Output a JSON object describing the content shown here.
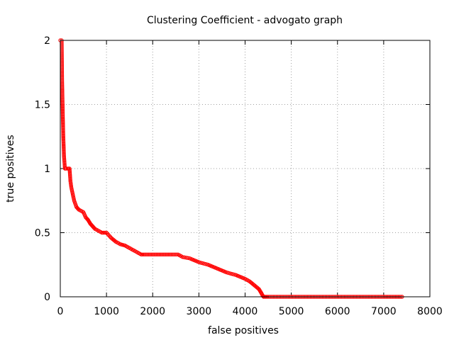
{
  "chart_data": {
    "type": "line",
    "title": "Clustering Coefficient - advogato graph",
    "xlabel": "false positives",
    "ylabel": "true positives",
    "xlim": [
      0,
      8000
    ],
    "ylim": [
      0,
      2
    ],
    "xticks": [
      0,
      1000,
      2000,
      3000,
      4000,
      5000,
      6000,
      7000,
      8000
    ],
    "xtick_labels": [
      "0",
      "1000",
      "2000",
      "3000",
      "4000",
      "5000",
      "6000",
      "7000",
      "8000"
    ],
    "yticks": [
      0,
      0.5,
      1,
      1.5,
      2
    ],
    "ytick_labels": [
      "0",
      "0.5",
      "1",
      "1.5",
      "2"
    ],
    "grid": true,
    "marker": "circle",
    "color": "#ff0000",
    "series": [
      {
        "x": [
          0,
          30,
          40,
          50,
          55,
          60,
          65,
          70,
          75,
          80,
          90,
          100,
          110,
          130,
          160,
          180,
          200,
          210,
          220,
          240,
          270,
          300,
          350,
          400,
          450,
          500,
          550,
          600,
          650,
          700,
          750,
          800,
          900,
          1000,
          1100,
          1200,
          1300,
          1400,
          1500,
          1600,
          1700,
          1750,
          1800,
          2000,
          2200,
          2400,
          2550,
          2650,
          2800,
          3000,
          3200,
          3400,
          3600,
          3800,
          4000,
          4100,
          4200,
          4300,
          4350,
          4380,
          4400,
          4500,
          5000,
          5500,
          6000,
          6500,
          7000,
          7400
        ],
        "y": [
          2,
          2,
          1.67,
          1.5,
          1.4,
          1.33,
          1.25,
          1.2,
          1.15,
          1.1,
          1.05,
          1.0,
          1.0,
          1.0,
          1.0,
          1.0,
          1.0,
          0.95,
          0.9,
          0.85,
          0.8,
          0.75,
          0.7,
          0.68,
          0.67,
          0.66,
          0.62,
          0.6,
          0.57,
          0.55,
          0.53,
          0.52,
          0.5,
          0.5,
          0.46,
          0.43,
          0.41,
          0.4,
          0.38,
          0.36,
          0.34,
          0.33,
          0.33,
          0.33,
          0.33,
          0.33,
          0.33,
          0.31,
          0.3,
          0.27,
          0.25,
          0.22,
          0.19,
          0.17,
          0.14,
          0.12,
          0.09,
          0.06,
          0.03,
          0.01,
          0,
          0,
          0,
          0,
          0,
          0,
          0,
          0
        ]
      }
    ]
  }
}
